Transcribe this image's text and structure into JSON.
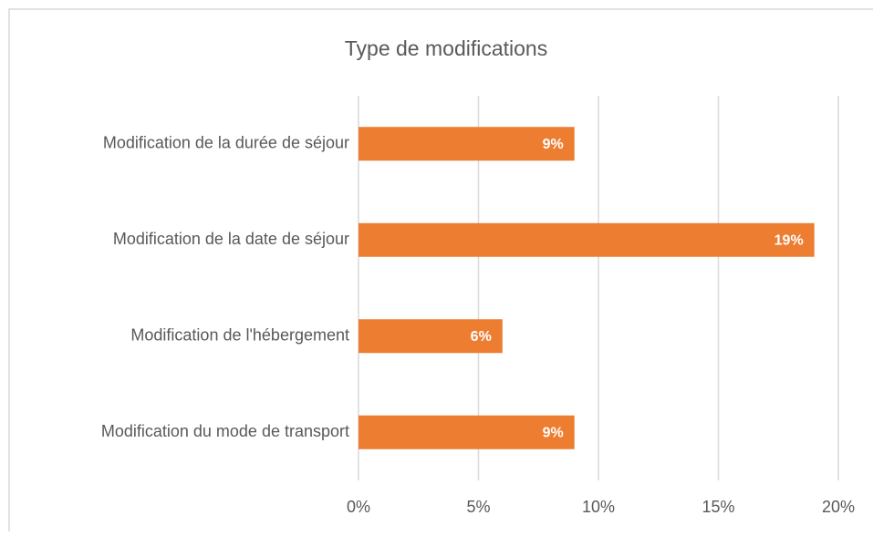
{
  "chart_data": {
    "type": "bar",
    "orientation": "horizontal",
    "title": "Type de modifications",
    "categories": [
      "Modification de la durée de séjour",
      "Modification de la date de séjour",
      "Modification de l'hébergement",
      "Modification du mode de transport"
    ],
    "values": [
      9,
      19,
      6,
      9
    ],
    "value_labels": [
      "9%",
      "19%",
      "6%",
      "9%"
    ],
    "color": "#ed7d31",
    "xlim": [
      0,
      20
    ],
    "xticks": [
      {
        "value": 0,
        "label": "0%"
      },
      {
        "value": 5,
        "label": "5%"
      },
      {
        "value": 10,
        "label": "10%"
      },
      {
        "value": 15,
        "label": "15%"
      },
      {
        "value": 20,
        "label": "20%"
      }
    ],
    "grid": true
  }
}
